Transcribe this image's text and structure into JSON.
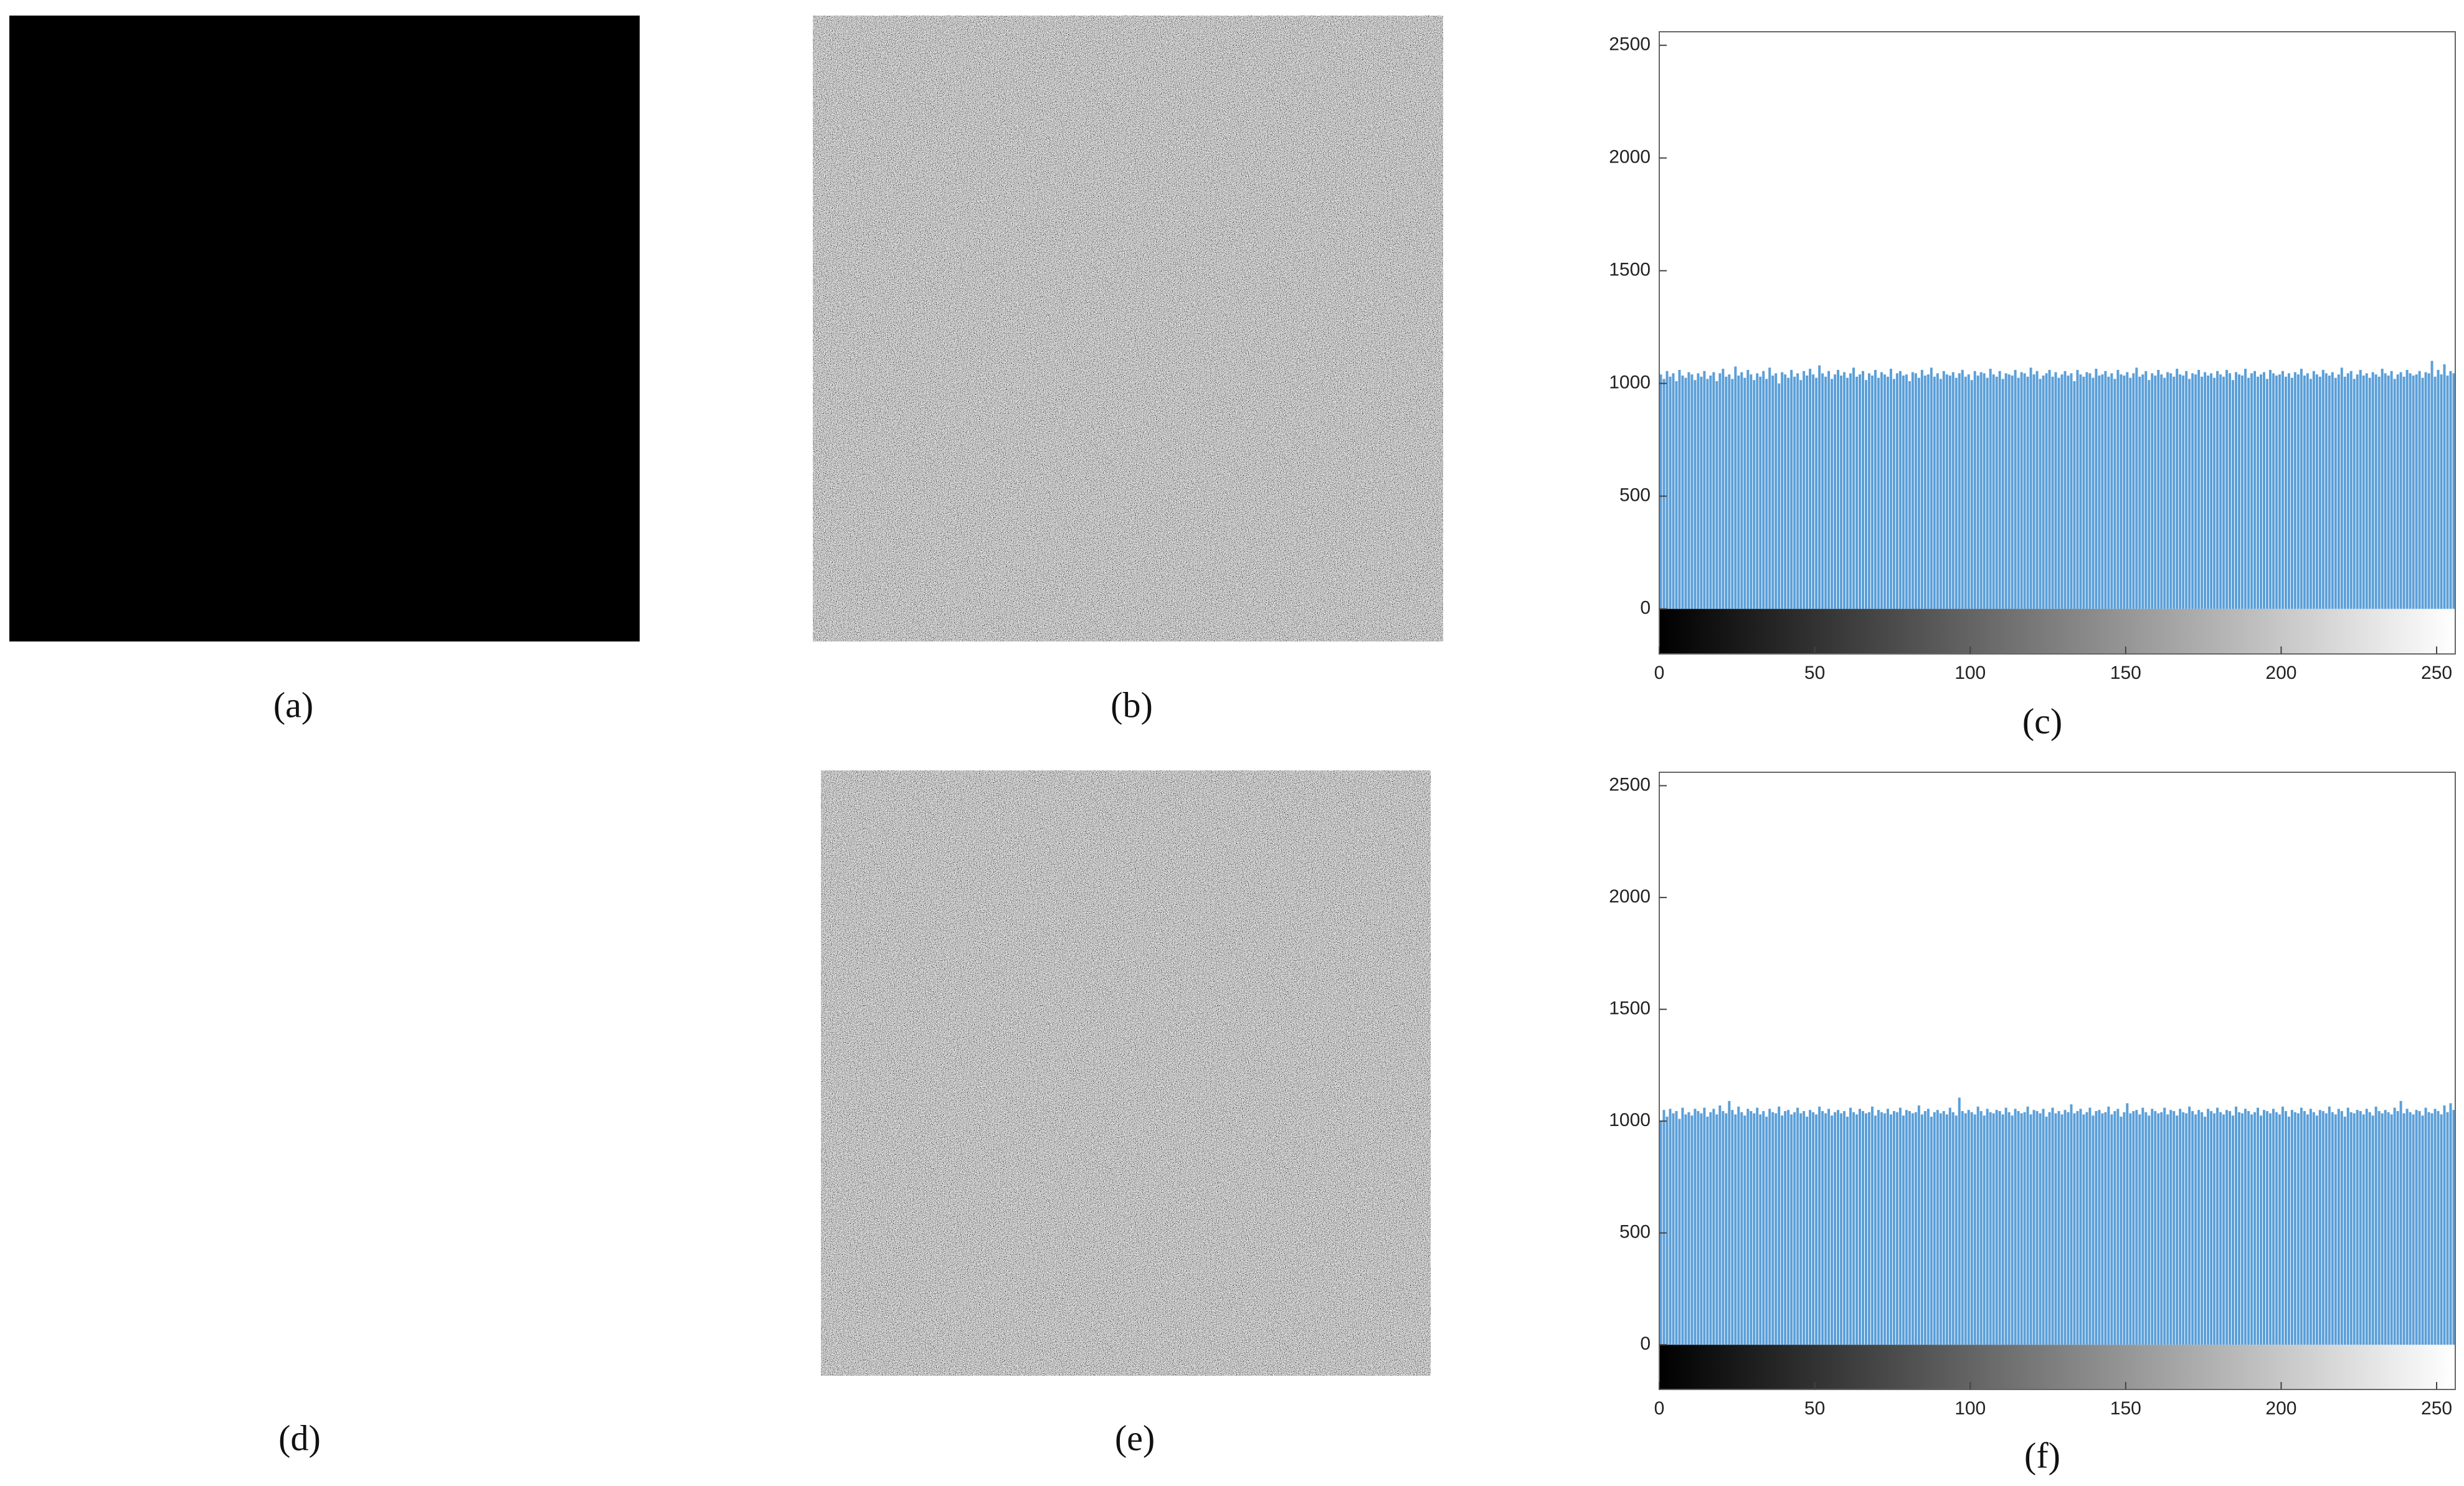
{
  "captions": [
    "(a)",
    "(b)",
    "(c)",
    "(d)",
    "(e)",
    "(f)"
  ],
  "chart_data": [
    {
      "type": "histogram",
      "color": "#5b9fd8",
      "xlim": [
        0,
        256
      ],
      "ylim": [
        -200,
        2560
      ],
      "xticks": [
        0,
        50,
        100,
        150,
        200,
        250
      ],
      "yticks": [
        0,
        500,
        1000,
        1500,
        2000,
        2500
      ],
      "bins": [
        0,
        1,
        2,
        3,
        4,
        5,
        6,
        7,
        8,
        9,
        10,
        11,
        12,
        13,
        14,
        15,
        16,
        17,
        18,
        19,
        20,
        21,
        22,
        23,
        24,
        25,
        26,
        27,
        28,
        29,
        30,
        31,
        32,
        33,
        34,
        35,
        36,
        37,
        38,
        39,
        40,
        41,
        42,
        43,
        44,
        45,
        46,
        47,
        48,
        49,
        50,
        51,
        52,
        53,
        54,
        55,
        56,
        57,
        58,
        59,
        60,
        61,
        62,
        63,
        64,
        65,
        66,
        67,
        68,
        69,
        70,
        71,
        72,
        73,
        74,
        75,
        76,
        77,
        78,
        79,
        80,
        81,
        82,
        83,
        84,
        85,
        86,
        87,
        88,
        89,
        90,
        91,
        92,
        93,
        94,
        95,
        96,
        97,
        98,
        99,
        100,
        101,
        102,
        103,
        104,
        105,
        106,
        107,
        108,
        109,
        110,
        111,
        112,
        113,
        114,
        115,
        116,
        117,
        118,
        119,
        120,
        121,
        122,
        123,
        124,
        125,
        126,
        127,
        128,
        129,
        130,
        131,
        132,
        133,
        134,
        135,
        136,
        137,
        138,
        139,
        140,
        141,
        142,
        143,
        144,
        145,
        146,
        147,
        148,
        149,
        150,
        151,
        152,
        153,
        154,
        155,
        156,
        157,
        158,
        159,
        160,
        161,
        162,
        163,
        164,
        165,
        166,
        167,
        168,
        169,
        170,
        171,
        172,
        173,
        174,
        175,
        176,
        177,
        178,
        179,
        180,
        181,
        182,
        183,
        184,
        185,
        186,
        187,
        188,
        189,
        190,
        191,
        192,
        193,
        194,
        195,
        196,
        197,
        198,
        199,
        200,
        201,
        202,
        203,
        204,
        205,
        206,
        207,
        208,
        209,
        210,
        211,
        212,
        213,
        214,
        215,
        216,
        217,
        218,
        219,
        220,
        221,
        222,
        223,
        224,
        225,
        226,
        227,
        228,
        229,
        230,
        231,
        232,
        233,
        234,
        235,
        236,
        237,
        238,
        239,
        240,
        241,
        242,
        243,
        244,
        245,
        246,
        247,
        248,
        249,
        250,
        251,
        252,
        253,
        254,
        255,
        256
      ],
      "values": [
        1040,
        1020,
        1055,
        1030,
        1045,
        1010,
        1060,
        1035,
        1025,
        1050,
        1040,
        1015,
        1045,
        1030,
        1055,
        1020,
        1035,
        1050,
        1010,
        1045,
        1065,
        1030,
        1040,
        1020,
        1075,
        1035,
        1050,
        1025,
        1060,
        1040,
        1015,
        1045,
        1030,
        1055,
        1020,
        1070,
        1035,
        1045,
        1000,
        1050,
        1040,
        1025,
        1060,
        1030,
        1045,
        1015,
        1055,
        1035,
        1065,
        1040,
        1025,
        1080,
        1045,
        1030,
        1055,
        1020,
        1040,
        1060,
        1035,
        1050,
        1025,
        1045,
        1070,
        1030,
        1040,
        1055,
        1015,
        1045,
        1035,
        1060,
        1025,
        1050,
        1040,
        1030,
        1065,
        1020,
        1045,
        1055,
        1035,
        1040,
        1010,
        1050,
        1045,
        1025,
        1060,
        1035,
        1040,
        1070,
        1030,
        1045,
        1020,
        1055,
        1040,
        1035,
        1050,
        1025,
        1045,
        1060,
        1030,
        1040,
        1015,
        1055,
        1035,
        1050,
        1045,
        1025,
        1065,
        1040,
        1030,
        1055,
        1020,
        1045,
        1040,
        1035,
        1060,
        1025,
        1050,
        1045,
        1030,
        1070,
        1040,
        1055,
        1020,
        1035,
        1045,
        1060,
        1030,
        1050,
        1025,
        1040,
        1055,
        1035,
        1045,
        1010,
        1060,
        1040,
        1030,
        1050,
        1045,
        1025,
        1065,
        1035,
        1040,
        1055,
        1030,
        1045,
        1020,
        1060,
        1040,
        1035,
        1050,
        1025,
        1045,
        1070,
        1030,
        1040,
        1055,
        1015,
        1045,
        1035,
        1060,
        1040,
        1025,
        1050,
        1045,
        1030,
        1065,
        1040,
        1035,
        1055,
        1020,
        1045,
        1040,
        1060,
        1030,
        1050,
        1035,
        1045,
        1025,
        1055,
        1040,
        1030,
        1060,
        1045,
        1015,
        1050,
        1040,
        1035,
        1065,
        1025,
        1045,
        1055,
        1030,
        1040,
        1050,
        1020,
        1060,
        1045,
        1035,
        1040,
        1055,
        1030,
        1045,
        1025,
        1050,
        1040,
        1065,
        1035,
        1045,
        1020,
        1055,
        1040,
        1030,
        1060,
        1045,
        1035,
        1050,
        1025,
        1040,
        1070,
        1030,
        1045,
        1055,
        1020,
        1040,
        1060,
        1035,
        1045,
        1025,
        1050,
        1040,
        1030,
        1065,
        1045,
        1035,
        1055,
        1020,
        1040,
        1050,
        1030,
        1060,
        1045,
        1035,
        1040,
        1055,
        1025,
        1050,
        1045,
        1100,
        1030,
        1060,
        1040,
        1085,
        1035,
        1055,
        1045
      ]
    },
    {
      "type": "histogram",
      "color": "#5b9fd8",
      "xlim": [
        0,
        256
      ],
      "ylim": [
        -200,
        2560
      ],
      "xticks": [
        0,
        50,
        100,
        150,
        200,
        250
      ],
      "yticks": [
        0,
        500,
        1000,
        1500,
        2000,
        2500
      ],
      "bins": [
        0,
        1,
        2,
        3,
        4,
        5,
        6,
        7,
        8,
        9,
        10,
        11,
        12,
        13,
        14,
        15,
        16,
        17,
        18,
        19,
        20,
        21,
        22,
        23,
        24,
        25,
        26,
        27,
        28,
        29,
        30,
        31,
        32,
        33,
        34,
        35,
        36,
        37,
        38,
        39,
        40,
        41,
        42,
        43,
        44,
        45,
        46,
        47,
        48,
        49,
        50,
        51,
        52,
        53,
        54,
        55,
        56,
        57,
        58,
        59,
        60,
        61,
        62,
        63,
        64,
        65,
        66,
        67,
        68,
        69,
        70,
        71,
        72,
        73,
        74,
        75,
        76,
        77,
        78,
        79,
        80,
        81,
        82,
        83,
        84,
        85,
        86,
        87,
        88,
        89,
        90,
        91,
        92,
        93,
        94,
        95,
        96,
        97,
        98,
        99,
        100,
        101,
        102,
        103,
        104,
        105,
        106,
        107,
        108,
        109,
        110,
        111,
        112,
        113,
        114,
        115,
        116,
        117,
        118,
        119,
        120,
        121,
        122,
        123,
        124,
        125,
        126,
        127,
        128,
        129,
        130,
        131,
        132,
        133,
        134,
        135,
        136,
        137,
        138,
        139,
        140,
        141,
        142,
        143,
        144,
        145,
        146,
        147,
        148,
        149,
        150,
        151,
        152,
        153,
        154,
        155,
        156,
        157,
        158,
        159,
        160,
        161,
        162,
        163,
        164,
        165,
        166,
        167,
        168,
        169,
        170,
        171,
        172,
        173,
        174,
        175,
        176,
        177,
        178,
        179,
        180,
        181,
        182,
        183,
        184,
        185,
        186,
        187,
        188,
        189,
        190,
        191,
        192,
        193,
        194,
        195,
        196,
        197,
        198,
        199,
        200,
        201,
        202,
        203,
        204,
        205,
        206,
        207,
        208,
        209,
        210,
        211,
        212,
        213,
        214,
        215,
        216,
        217,
        218,
        219,
        220,
        221,
        222,
        223,
        224,
        225,
        226,
        227,
        228,
        229,
        230,
        231,
        232,
        233,
        234,
        235,
        236,
        237,
        238,
        239,
        240,
        241,
        242,
        243,
        244,
        245,
        246,
        247,
        248,
        249,
        250,
        251,
        252,
        253,
        254,
        255,
        256
      ],
      "values": [
        1000,
        1050,
        1020,
        1055,
        1035,
        1045,
        1010,
        1060,
        1030,
        1040,
        1025,
        1055,
        1045,
        1035,
        1060,
        1020,
        1040,
        1055,
        1030,
        1070,
        1045,
        1035,
        1090,
        1050,
        1030,
        1065,
        1040,
        1025,
        1055,
        1045,
        1035,
        1060,
        1030,
        1045,
        1020,
        1055,
        1040,
        1035,
        1065,
        1025,
        1045,
        1050,
        1030,
        1040,
        1060,
        1035,
        1045,
        1020,
        1050,
        1040,
        1030,
        1065,
        1045,
        1035,
        1055,
        1025,
        1040,
        1050,
        1035,
        1045,
        1020,
        1060,
        1040,
        1030,
        1055,
        1045,
        1035,
        1040,
        1065,
        1025,
        1050,
        1040,
        1035,
        1055,
        1030,
        1045,
        1040,
        1060,
        1025,
        1050,
        1045,
        1035,
        1040,
        1070,
        1030,
        1045,
        1055,
        1020,
        1040,
        1050,
        1035,
        1045,
        1030,
        1060,
        1040,
        1025,
        1105,
        1045,
        1035,
        1050,
        1040,
        1030,
        1065,
        1045,
        1025,
        1055,
        1040,
        1035,
        1050,
        1045,
        1030,
        1060,
        1040,
        1025,
        1055,
        1045,
        1035,
        1040,
        1065,
        1030,
        1050,
        1045,
        1035,
        1055,
        1020,
        1040,
        1060,
        1035,
        1045,
        1030,
        1050,
        1040,
        1075,
        1035,
        1045,
        1055,
        1030,
        1040,
        1060,
        1025,
        1045,
        1050,
        1035,
        1040,
        1065,
        1030,
        1045,
        1055,
        1020,
        1040,
        1080,
        1035,
        1045,
        1050,
        1030,
        1060,
        1040,
        1025,
        1055,
        1045,
        1035,
        1040,
        1060,
        1030,
        1050,
        1045,
        1025,
        1055,
        1040,
        1035,
        1065,
        1045,
        1030,
        1050,
        1040,
        1020,
        1055,
        1045,
        1035,
        1060,
        1040,
        1030,
        1050,
        1045,
        1025,
        1065,
        1040,
        1035,
        1055,
        1045,
        1030,
        1040,
        1060,
        1025,
        1050,
        1045,
        1035,
        1055,
        1040,
        1030,
        1065,
        1045,
        1020,
        1050,
        1040,
        1035,
        1060,
        1045,
        1030,
        1055,
        1040,
        1025,
        1050,
        1045,
        1035,
        1065,
        1040,
        1030,
        1055,
        1045,
        1020,
        1060,
        1040,
        1035,
        1050,
        1045,
        1030,
        1055,
        1040,
        1025,
        1065,
        1045,
        1035,
        1050,
        1040,
        1030,
        1060,
        1045,
        1090,
        1035,
        1055,
        1040,
        1030,
        1050,
        1045,
        1025,
        1060,
        1040,
        1035,
        1055,
        1045,
        1030,
        1070,
        1040,
        1080,
        1050
      ]
    }
  ]
}
